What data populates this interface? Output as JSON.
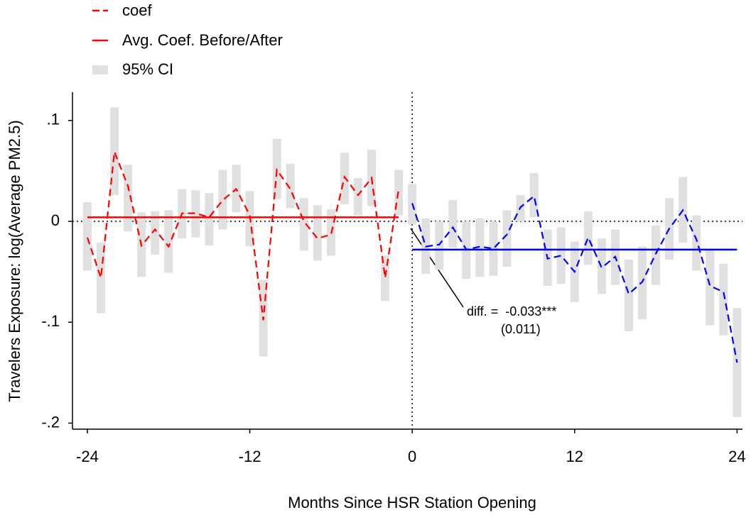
{
  "chart_data": {
    "type": "line",
    "x": [
      -24,
      -23,
      -22,
      -21,
      -20,
      -19,
      -18,
      -17,
      -16,
      -15,
      -14,
      -13,
      -12,
      -11,
      -10,
      -9,
      -8,
      -7,
      -6,
      -5,
      -4,
      -3,
      -2,
      -1,
      0,
      1,
      2,
      3,
      4,
      5,
      6,
      7,
      8,
      9,
      10,
      11,
      12,
      13,
      14,
      15,
      16,
      17,
      18,
      19,
      20,
      21,
      22,
      23,
      24
    ],
    "series": [
      {
        "name": "coef",
        "values": [
          -0.016,
          -0.056,
          0.069,
          0.035,
          -0.024,
          -0.008,
          -0.025,
          0.008,
          0.008,
          0.004,
          0.021,
          0.032,
          0.006,
          -0.098,
          0.051,
          0.032,
          0,
          -0.017,
          -0.013,
          0.044,
          0.026,
          0.043,
          -0.056,
          0.032,
          0.018,
          -0.025,
          -0.023,
          -0.006,
          -0.028,
          -0.025,
          -0.027,
          -0.013,
          0.014,
          0.025,
          -0.037,
          -0.034,
          -0.05,
          -0.016,
          -0.046,
          -0.035,
          -0.072,
          -0.06,
          -0.032,
          -0.007,
          0.011,
          -0.018,
          -0.064,
          -0.07,
          -0.14
        ],
        "ci_upper": [
          0.019,
          -0.021,
          0.113,
          0.056,
          0.009,
          0.01,
          0.011,
          0.032,
          0.031,
          0.028,
          0.051,
          0.056,
          0.03,
          -0.058,
          0.082,
          0.057,
          0.023,
          0.016,
          0.012,
          0.068,
          0.043,
          0.071,
          -0.034,
          0.051,
          0.037,
          0.003,
          0,
          0.021,
          0,
          0.003,
          0,
          0.011,
          0.026,
          0.048,
          -0.008,
          -0.006,
          -0.02,
          0.01,
          -0.017,
          -0.008,
          -0.038,
          -0.025,
          -0.004,
          0.023,
          0.044,
          0.006,
          -0.028,
          -0.042,
          -0.086
        ],
        "ci_lower": [
          -0.049,
          -0.091,
          0.026,
          -0.01,
          -0.055,
          -0.033,
          -0.051,
          -0.017,
          -0.016,
          -0.024,
          -0.008,
          0.009,
          -0.025,
          -0.134,
          0.022,
          0.013,
          -0.029,
          -0.039,
          -0.034,
          0.017,
          0.006,
          0.015,
          -0.079,
          0.006,
          -0.003,
          -0.052,
          -0.048,
          -0.026,
          -0.057,
          -0.055,
          -0.054,
          -0.045,
          0,
          0.004,
          -0.064,
          -0.062,
          -0.08,
          -0.043,
          -0.072,
          -0.063,
          -0.109,
          -0.097,
          -0.063,
          -0.038,
          -0.021,
          -0.049,
          -0.103,
          -0.113,
          -0.194
        ]
      }
    ],
    "event_x": 0,
    "colors": {
      "before": "#ff0000",
      "after": "#0000ff",
      "ci": "#e0e0e0"
    },
    "average": {
      "name": "Avg. Coef. Before/After",
      "before": 0.004,
      "after": -0.028
    },
    "ci_name": "95% CI",
    "annotation": [
      "diff. =  -0.033***",
      "(0.011)"
    ],
    "x_label": "Months Since HSR Station Opening",
    "y_label": "Travelers Exposure: log(Average PM2.5)",
    "xlim": [
      -25.1,
      24.4
    ],
    "ylim": [
      -0.206,
      0.128
    ],
    "xticks": [
      -24,
      -12,
      0,
      12,
      24
    ],
    "yticks": [
      {
        "value": -0.2,
        "label": "-.2"
      },
      {
        "value": -0.1,
        "label": "-.1"
      },
      0,
      {
        "value": 0.1,
        "label": ".1"
      }
    ],
    "legend": "top-left"
  }
}
